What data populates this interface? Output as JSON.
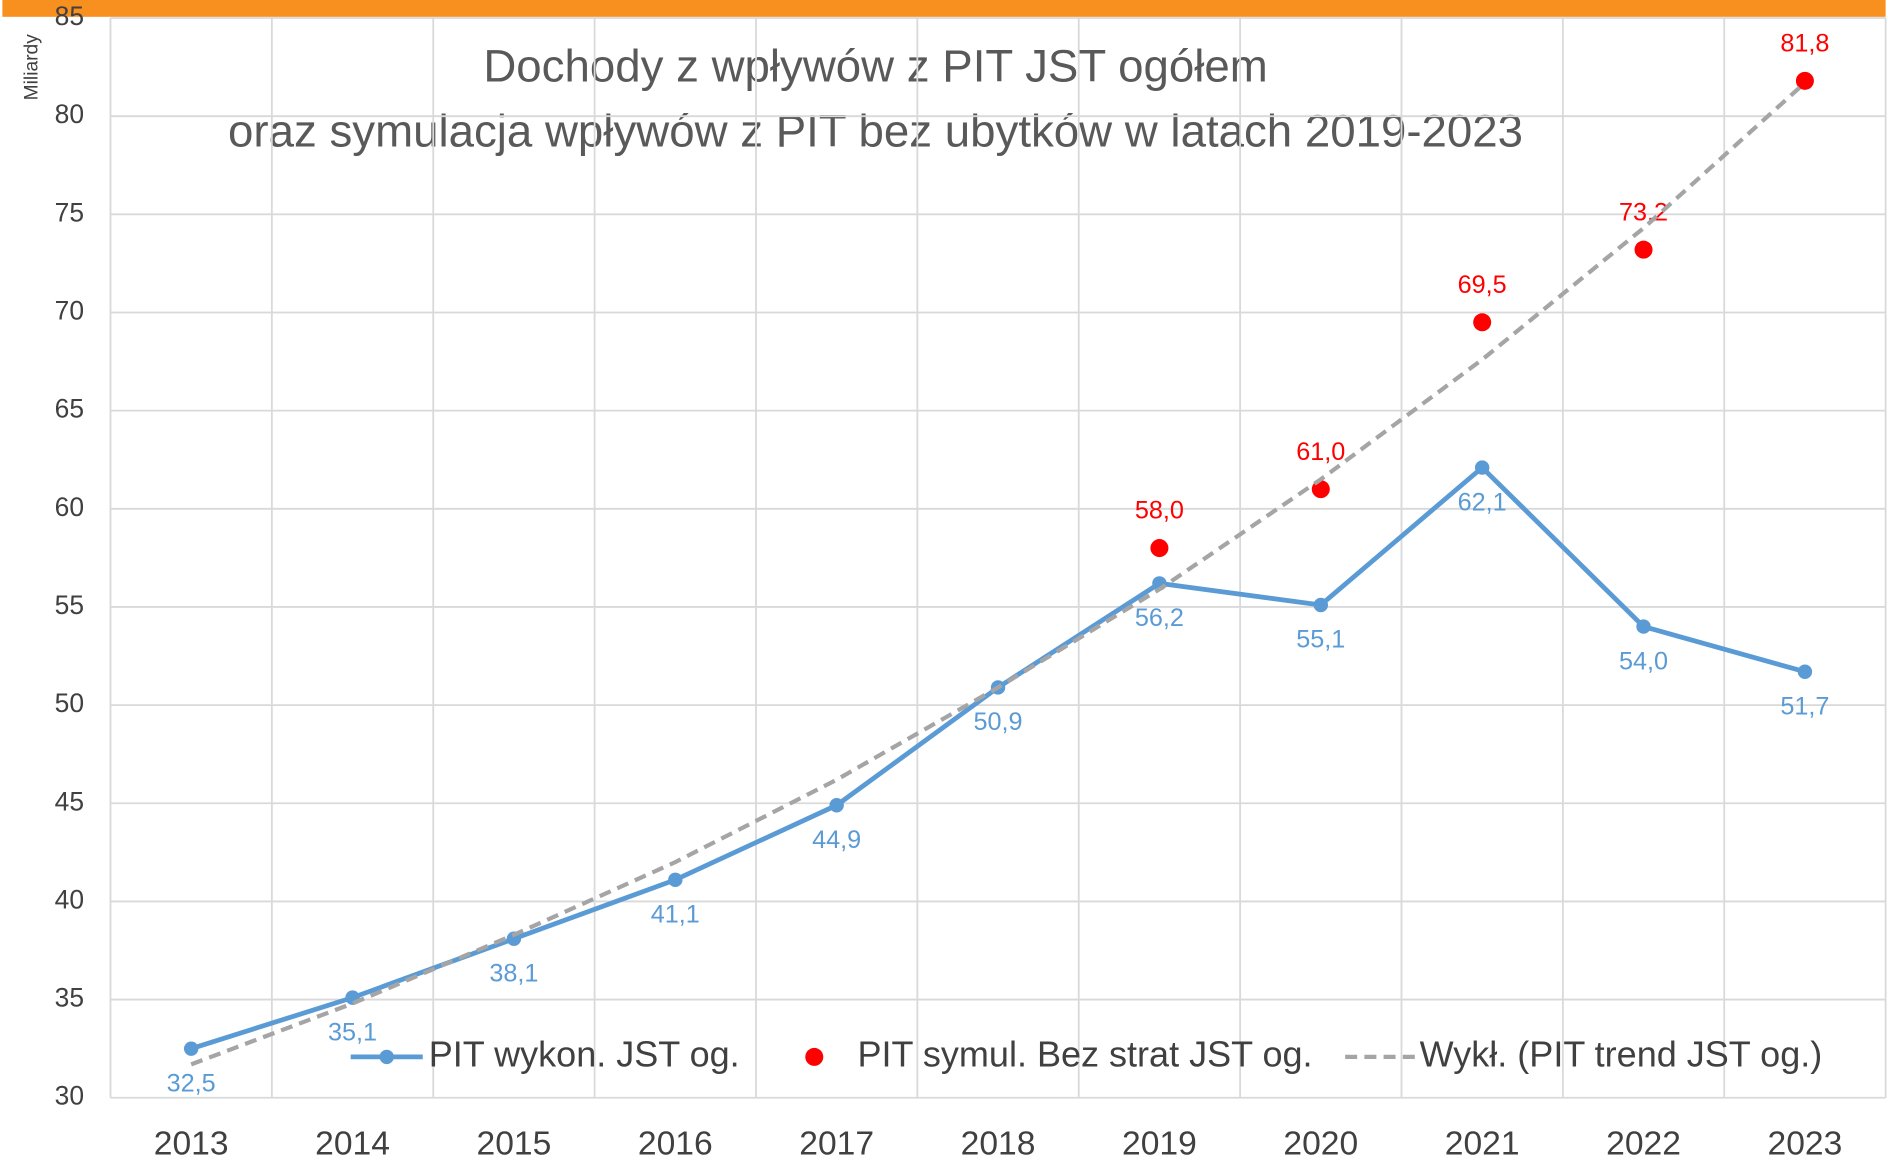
{
  "chart_data": {
    "type": "line",
    "title": [
      "Dochody z wpływów z PIT       JST ogółem",
      "oraz  symulacja wpływów z PIT bez ubytków w latach 2019-2023"
    ],
    "y_axis_label": "Miliardy",
    "categories": [
      "2013",
      "2014",
      "2015",
      "2016",
      "2017",
      "2018",
      "2019",
      "2020",
      "2021",
      "2022",
      "2023"
    ],
    "ylim": [
      30,
      85
    ],
    "yticks": [
      30,
      35,
      40,
      45,
      50,
      55,
      60,
      65,
      70,
      75,
      80,
      85
    ],
    "grid": true,
    "legend": "bottom",
    "series": [
      {
        "name": "PIT wykon.  JST og.",
        "type": "line",
        "color": "#5b9bd5",
        "values": [
          32.5,
          35.1,
          38.1,
          41.1,
          44.9,
          50.9,
          56.2,
          55.1,
          62.1,
          54.0,
          51.7
        ],
        "value_labels": [
          "32,5",
          "35,1",
          "38,1",
          "41,1",
          "44,9",
          "50,9",
          "56,2",
          "55,1",
          "62,1",
          "54,0",
          "51,7"
        ]
      },
      {
        "name": "PIT symul. Bez strat JST og.",
        "type": "scatter",
        "color": "#ff0000",
        "values": [
          null,
          null,
          null,
          null,
          null,
          null,
          58.0,
          61.0,
          69.5,
          73.2,
          81.8
        ],
        "value_labels": [
          null,
          null,
          null,
          null,
          null,
          null,
          "58,0",
          "61,0",
          "69,5",
          "73.2",
          "81,8"
        ]
      },
      {
        "name": "Wykł. (PIT trend  JST og.)",
        "type": "trend",
        "color": "#a5a5a5",
        "values": [
          31.7,
          34.8,
          38.3,
          42.0,
          46.2,
          50.9,
          55.9,
          61.5,
          67.6,
          74.3,
          81.7
        ]
      }
    ]
  }
}
